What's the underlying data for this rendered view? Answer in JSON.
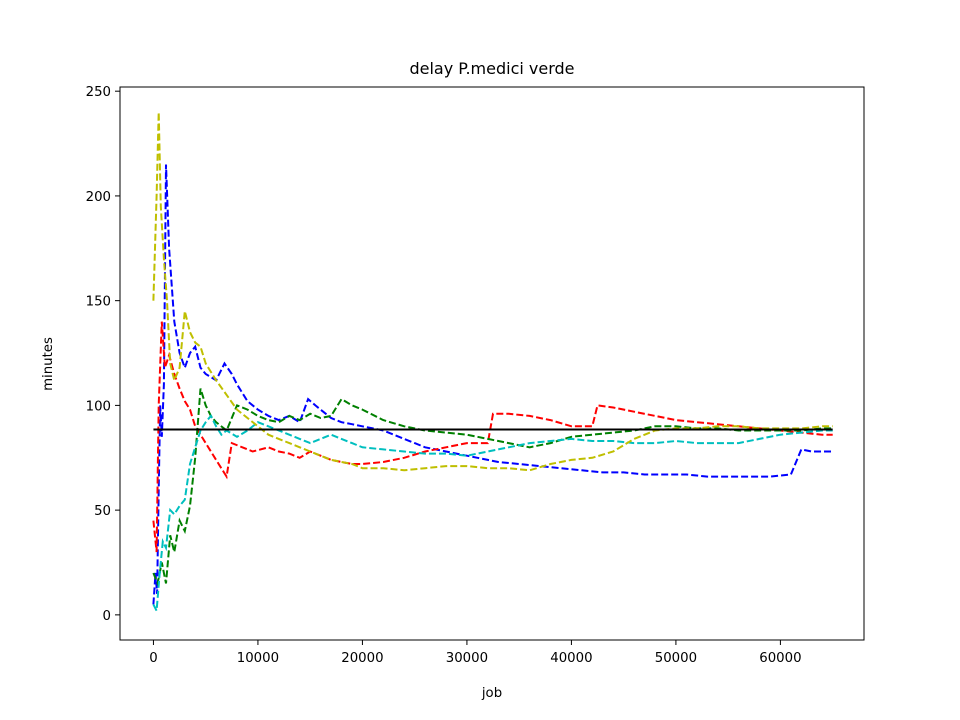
{
  "chart_data": {
    "type": "line",
    "title": "delay P.medici verde",
    "xlabel": "job",
    "ylabel": "minutes",
    "xlim": [
      -3200,
      68000
    ],
    "ylim": [
      -12,
      252
    ],
    "xticks": [
      0,
      10000,
      20000,
      30000,
      40000,
      50000,
      60000
    ],
    "yticks": [
      0,
      50,
      100,
      150,
      200,
      250
    ],
    "grid": false,
    "legend": "none",
    "reference_line": {
      "y": 88.5,
      "x_range": [
        0,
        65000
      ],
      "color": "#000000",
      "style": "solid"
    },
    "series": [
      {
        "color": "#0000ff",
        "style": "dashed",
        "points": [
          [
            0,
            5
          ],
          [
            200,
            20
          ],
          [
            350,
            10
          ],
          [
            500,
            60
          ],
          [
            650,
            100
          ],
          [
            800,
            85
          ],
          [
            1000,
            110
          ],
          [
            1200,
            215
          ],
          [
            1500,
            175
          ],
          [
            2000,
            140
          ],
          [
            2500,
            125
          ],
          [
            3000,
            118
          ],
          [
            3500,
            125
          ],
          [
            4000,
            128
          ],
          [
            4500,
            118
          ],
          [
            5000,
            115
          ],
          [
            6000,
            112
          ],
          [
            6800,
            120
          ],
          [
            7500,
            115
          ],
          [
            8000,
            110
          ],
          [
            9000,
            102
          ],
          [
            10000,
            98
          ],
          [
            11000,
            95
          ],
          [
            12000,
            93
          ],
          [
            13000,
            95
          ],
          [
            14000,
            92
          ],
          [
            14800,
            103
          ],
          [
            15500,
            100
          ],
          [
            16000,
            98
          ],
          [
            17000,
            94
          ],
          [
            18000,
            92
          ],
          [
            19000,
            91
          ],
          [
            20000,
            90
          ],
          [
            21000,
            89
          ],
          [
            22000,
            88
          ],
          [
            23000,
            86
          ],
          [
            24000,
            84
          ],
          [
            25000,
            82
          ],
          [
            26000,
            80
          ],
          [
            27000,
            79
          ],
          [
            28000,
            78
          ],
          [
            29000,
            77
          ],
          [
            30000,
            76
          ],
          [
            31000,
            75
          ],
          [
            32000,
            74
          ],
          [
            33000,
            73
          ],
          [
            35000,
            72
          ],
          [
            37000,
            71
          ],
          [
            39000,
            70
          ],
          [
            41000,
            69
          ],
          [
            43000,
            68
          ],
          [
            45000,
            68
          ],
          [
            47000,
            67
          ],
          [
            49000,
            67
          ],
          [
            51000,
            67
          ],
          [
            53000,
            66
          ],
          [
            55000,
            66
          ],
          [
            57000,
            66
          ],
          [
            59000,
            66
          ],
          [
            61000,
            67
          ],
          [
            62000,
            79
          ],
          [
            63000,
            78
          ],
          [
            64000,
            78
          ],
          [
            65000,
            78
          ]
        ]
      },
      {
        "color": "#ff0000",
        "style": "dashed",
        "points": [
          [
            0,
            45
          ],
          [
            300,
            30
          ],
          [
            500,
            100
          ],
          [
            800,
            140
          ],
          [
            1100,
            118
          ],
          [
            1500,
            124
          ],
          [
            2000,
            115
          ],
          [
            2500,
            108
          ],
          [
            3000,
            102
          ],
          [
            3500,
            98
          ],
          [
            4000,
            90
          ],
          [
            4500,
            86
          ],
          [
            5000,
            82
          ],
          [
            6000,
            74
          ],
          [
            7000,
            66
          ],
          [
            7500,
            82
          ],
          [
            8500,
            80
          ],
          [
            9500,
            78
          ],
          [
            11000,
            80
          ],
          [
            12000,
            78
          ],
          [
            13000,
            77
          ],
          [
            14000,
            75
          ],
          [
            15000,
            78
          ],
          [
            16000,
            76
          ],
          [
            17000,
            74
          ],
          [
            18000,
            73
          ],
          [
            19000,
            72
          ],
          [
            20000,
            72
          ],
          [
            22000,
            73
          ],
          [
            24000,
            75
          ],
          [
            26000,
            78
          ],
          [
            28000,
            80
          ],
          [
            30000,
            82
          ],
          [
            32000,
            82
          ],
          [
            32500,
            96
          ],
          [
            34000,
            96
          ],
          [
            36000,
            95
          ],
          [
            38000,
            93
          ],
          [
            40000,
            90
          ],
          [
            42000,
            90
          ],
          [
            42500,
            100
          ],
          [
            44000,
            99
          ],
          [
            46000,
            97
          ],
          [
            48000,
            95
          ],
          [
            50000,
            93
          ],
          [
            52000,
            92
          ],
          [
            54000,
            91
          ],
          [
            56000,
            90
          ],
          [
            58000,
            89
          ],
          [
            60000,
            88
          ],
          [
            62000,
            87
          ],
          [
            64000,
            86
          ],
          [
            65000,
            86
          ]
        ]
      },
      {
        "color": "#008000",
        "style": "dashed",
        "points": [
          [
            0,
            20
          ],
          [
            400,
            15
          ],
          [
            800,
            25
          ],
          [
            1200,
            15
          ],
          [
            1600,
            38
          ],
          [
            2000,
            30
          ],
          [
            2500,
            45
          ],
          [
            3000,
            40
          ],
          [
            3500,
            52
          ],
          [
            4000,
            75
          ],
          [
            4500,
            108
          ],
          [
            5000,
            100
          ],
          [
            5500,
            95
          ],
          [
            6000,
            92
          ],
          [
            7000,
            88
          ],
          [
            8000,
            100
          ],
          [
            9000,
            98
          ],
          [
            10000,
            95
          ],
          [
            11000,
            93
          ],
          [
            12000,
            92
          ],
          [
            13000,
            95
          ],
          [
            14000,
            93
          ],
          [
            15000,
            96
          ],
          [
            16000,
            94
          ],
          [
            17000,
            95
          ],
          [
            18000,
            103
          ],
          [
            19000,
            100
          ],
          [
            20000,
            98
          ],
          [
            22000,
            93
          ],
          [
            24000,
            90
          ],
          [
            26000,
            88
          ],
          [
            28000,
            87
          ],
          [
            30000,
            86
          ],
          [
            32000,
            84
          ],
          [
            34000,
            82
          ],
          [
            36000,
            80
          ],
          [
            38000,
            82
          ],
          [
            40000,
            85
          ],
          [
            42000,
            86
          ],
          [
            44000,
            87
          ],
          [
            46000,
            88
          ],
          [
            48000,
            90
          ],
          [
            50000,
            90
          ],
          [
            52000,
            89
          ],
          [
            54000,
            89
          ],
          [
            56000,
            88
          ],
          [
            58000,
            88
          ],
          [
            60000,
            88
          ],
          [
            62000,
            88
          ],
          [
            64000,
            89
          ],
          [
            65000,
            89
          ]
        ]
      },
      {
        "color": "#00bfbf",
        "style": "dashed",
        "points": [
          [
            0,
            5
          ],
          [
            300,
            2
          ],
          [
            600,
            20
          ],
          [
            900,
            35
          ],
          [
            1200,
            32
          ],
          [
            1600,
            50
          ],
          [
            2000,
            48
          ],
          [
            2500,
            52
          ],
          [
            3000,
            55
          ],
          [
            3500,
            72
          ],
          [
            4000,
            80
          ],
          [
            4500,
            88
          ],
          [
            5000,
            92
          ],
          [
            5500,
            95
          ],
          [
            6000,
            90
          ],
          [
            6500,
            86
          ],
          [
            7000,
            88
          ],
          [
            8000,
            85
          ],
          [
            9000,
            88
          ],
          [
            10000,
            92
          ],
          [
            11000,
            90
          ],
          [
            12000,
            88
          ],
          [
            13000,
            86
          ],
          [
            14000,
            84
          ],
          [
            15000,
            82
          ],
          [
            16000,
            84
          ],
          [
            17000,
            86
          ],
          [
            18000,
            84
          ],
          [
            19000,
            82
          ],
          [
            20000,
            80
          ],
          [
            22000,
            79
          ],
          [
            24000,
            78
          ],
          [
            26000,
            77
          ],
          [
            28000,
            77
          ],
          [
            30000,
            76
          ],
          [
            32000,
            78
          ],
          [
            34000,
            80
          ],
          [
            36000,
            82
          ],
          [
            38000,
            83
          ],
          [
            40000,
            84
          ],
          [
            42000,
            83
          ],
          [
            44000,
            83
          ],
          [
            46000,
            82
          ],
          [
            48000,
            82
          ],
          [
            50000,
            83
          ],
          [
            52000,
            82
          ],
          [
            54000,
            82
          ],
          [
            56000,
            82
          ],
          [
            58000,
            84
          ],
          [
            60000,
            86
          ],
          [
            62000,
            87
          ],
          [
            64000,
            88
          ],
          [
            65000,
            88
          ]
        ]
      },
      {
        "color": "#bfbf00",
        "style": "dashed",
        "points": [
          [
            0,
            150
          ],
          [
            300,
            200
          ],
          [
            500,
            240
          ],
          [
            700,
            195
          ],
          [
            1000,
            170
          ],
          [
            1300,
            150
          ],
          [
            1600,
            120
          ],
          [
            2000,
            112
          ],
          [
            2500,
            118
          ],
          [
            3000,
            145
          ],
          [
            3500,
            135
          ],
          [
            4000,
            130
          ],
          [
            4500,
            128
          ],
          [
            5000,
            120
          ],
          [
            6000,
            112
          ],
          [
            7000,
            105
          ],
          [
            8000,
            98
          ],
          [
            9000,
            94
          ],
          [
            10000,
            90
          ],
          [
            11000,
            86
          ],
          [
            12000,
            84
          ],
          [
            13000,
            82
          ],
          [
            14000,
            80
          ],
          [
            15000,
            78
          ],
          [
            16000,
            76
          ],
          [
            17000,
            74
          ],
          [
            18000,
            73
          ],
          [
            19000,
            72
          ],
          [
            20000,
            70
          ],
          [
            22000,
            70
          ],
          [
            24000,
            69
          ],
          [
            26000,
            70
          ],
          [
            28000,
            71
          ],
          [
            30000,
            71
          ],
          [
            32000,
            70
          ],
          [
            34000,
            70
          ],
          [
            36000,
            69
          ],
          [
            38000,
            72
          ],
          [
            40000,
            74
          ],
          [
            42000,
            75
          ],
          [
            44000,
            78
          ],
          [
            46000,
            84
          ],
          [
            48000,
            88
          ],
          [
            50000,
            89
          ],
          [
            52000,
            89
          ],
          [
            54000,
            90
          ],
          [
            56000,
            90
          ],
          [
            58000,
            89
          ],
          [
            60000,
            89
          ],
          [
            62000,
            89
          ],
          [
            64000,
            90
          ],
          [
            65000,
            90
          ]
        ]
      }
    ]
  }
}
